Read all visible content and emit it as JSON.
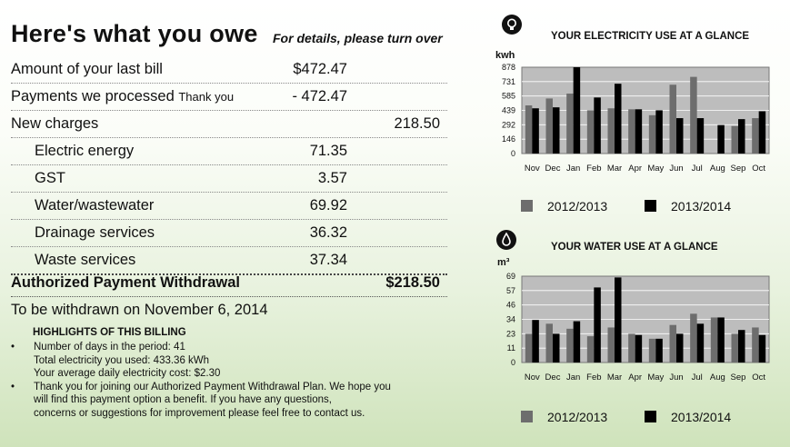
{
  "header": {
    "title": "Here's what you owe",
    "subtitle": "For details, please turn over"
  },
  "rows": [
    {
      "label": "Amount of your last bill",
      "note": "",
      "mid": "$472.47",
      "right": ""
    },
    {
      "label": "Payments we processed",
      "note": "Thank you",
      "mid": "- 472.47",
      "right": ""
    },
    {
      "label": "New charges",
      "note": "",
      "mid": "",
      "right": "218.50"
    },
    {
      "label": "Electric energy",
      "note": "",
      "mid": "71.35",
      "right": ""
    },
    {
      "label": "GST",
      "note": "",
      "mid": "3.57",
      "right": ""
    },
    {
      "label": "Water/wastewater",
      "note": "",
      "mid": "69.92",
      "right": ""
    },
    {
      "label": "Drainage services",
      "note": "",
      "mid": "36.32",
      "right": ""
    },
    {
      "label": "Waste services",
      "note": "",
      "mid": "37.34",
      "right": ""
    }
  ],
  "total": {
    "label": "Authorized Payment Withdrawal",
    "amount": "$218.50"
  },
  "withdraw_text": "To be withdrawn on November 6, 2014",
  "highlights": {
    "title": "HIGHLIGHTS OF THIS BILLING",
    "lines": [
      {
        "bullet": "•",
        "text": "Number of days in the period: 41"
      },
      {
        "bullet": "",
        "text": "Total electricity you used: 433.36 kWh"
      },
      {
        "bullet": "",
        "text": "Your average daily electricity cost: $2.30"
      },
      {
        "bullet": "•",
        "text": "Thank you for joining our Authorized Payment Withdrawal Plan.  We hope you"
      },
      {
        "bullet": "",
        "text": "will find this payment option a benefit.  If you have any questions,"
      },
      {
        "bullet": "",
        "text": "concerns or suggestions for improvement please feel free to contact us."
      }
    ]
  },
  "colors": {
    "series_2012": "#6d6d6d",
    "series_2013": "#000000",
    "plot_bg": "#bdbdbd"
  },
  "chart_data": [
    {
      "type": "bar",
      "title": "YOUR ELECTRICITY USE AT A GLANCE",
      "icon": "lightbulb-icon",
      "ylabel": "kwh",
      "categories": [
        "Nov",
        "Dec",
        "Jan",
        "Feb",
        "Mar",
        "Apr",
        "May",
        "Jun",
        "Jul",
        "Aug",
        "Sep",
        "Oct"
      ],
      "yticks": [
        "0",
        "146",
        "292",
        "439",
        "585",
        "731",
        "878"
      ],
      "ylim": [
        0,
        878
      ],
      "series": [
        {
          "name": "2012/2013",
          "values": [
            490,
            560,
            610,
            440,
            460,
            450,
            390,
            700,
            780,
            0,
            280,
            360
          ]
        },
        {
          "name": "2013/2014",
          "values": [
            460,
            470,
            878,
            570,
            710,
            450,
            440,
            360,
            360,
            290,
            350,
            430
          ]
        }
      ],
      "grid": true,
      "legend": "bottom"
    },
    {
      "type": "bar",
      "title": "YOUR WATER USE AT A GLANCE",
      "icon": "water-drop-icon",
      "ylabel": "m³",
      "categories": [
        "Nov",
        "Dec",
        "Jan",
        "Feb",
        "Mar",
        "Apr",
        "May",
        "Jun",
        "Jul",
        "Aug",
        "Sep",
        "Oct"
      ],
      "yticks": [
        "0",
        "11",
        "23",
        "34",
        "46",
        "57",
        "69"
      ],
      "ylim": [
        0,
        69
      ],
      "series": [
        {
          "name": "2012/2013",
          "values": [
            23,
            31,
            27,
            21,
            28,
            23,
            19,
            30,
            39,
            36,
            23,
            28
          ]
        },
        {
          "name": "2013/2014",
          "values": [
            34,
            23,
            33,
            60,
            68,
            22,
            19,
            23,
            31,
            36,
            26,
            22
          ]
        }
      ],
      "grid": true,
      "legend": "bottom"
    }
  ]
}
